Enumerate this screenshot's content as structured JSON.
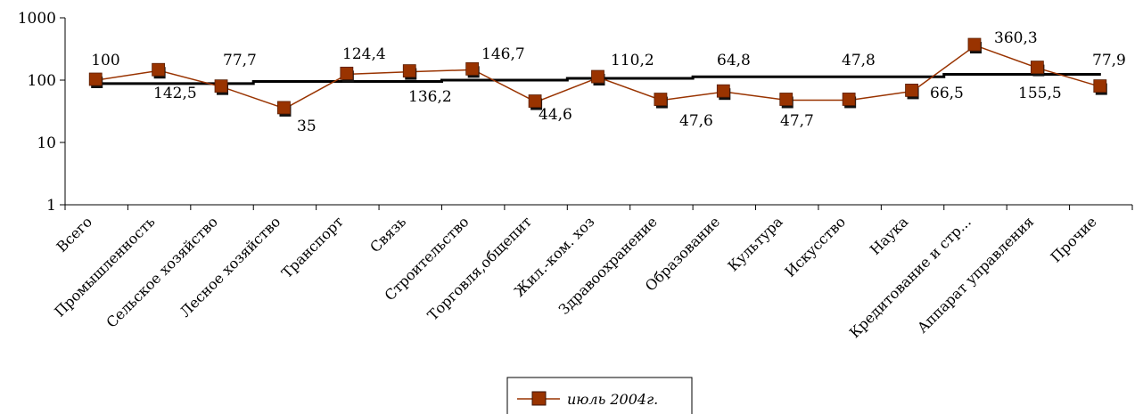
{
  "chart_data": {
    "type": "line",
    "y_scale": "log",
    "ylim": [
      1,
      1000
    ],
    "y_ticks": [
      "1",
      "10",
      "100",
      "1000"
    ],
    "grid": false,
    "legend_position": "bottom-center",
    "categories": [
      "Всего",
      "Промышленность",
      "Сельское хозяйство",
      "Лесное хозяйство",
      "Транспорт",
      "Связь",
      "Строительство",
      "Торговля,общепит",
      "Жил.-ком. хоз",
      "Здравоохранение",
      "Образование",
      "Культура",
      "Искусство",
      "Наука",
      "Кредитование и стр...",
      "Аппарат управления",
      "Прочие"
    ],
    "series": [
      {
        "name": "июль 2004г.",
        "color": "#993300",
        "marker": "square",
        "values": [
          100,
          142.5,
          77.7,
          35,
          124.4,
          136.2,
          146.7,
          44.6,
          110.2,
          47.6,
          64.8,
          47.7,
          47.8,
          66.5,
          360.3,
          155.5,
          77.9
        ],
        "labels": [
          "100",
          "142,5",
          "77,7",
          "35",
          "124,4",
          "136,2",
          "146,7",
          "44,6",
          "110,2",
          "47,6",
          "64,8",
          "47,7",
          "47,8",
          "66,5",
          "360,3",
          "155,5",
          "77,9"
        ]
      },
      {
        "type": "trendline",
        "color": "#000000",
        "values": [
          88,
          88,
          88,
          95,
          95,
          95,
          100,
          100,
          107,
          107,
          113,
          113,
          113,
          113,
          124,
          124,
          124
        ]
      }
    ]
  }
}
